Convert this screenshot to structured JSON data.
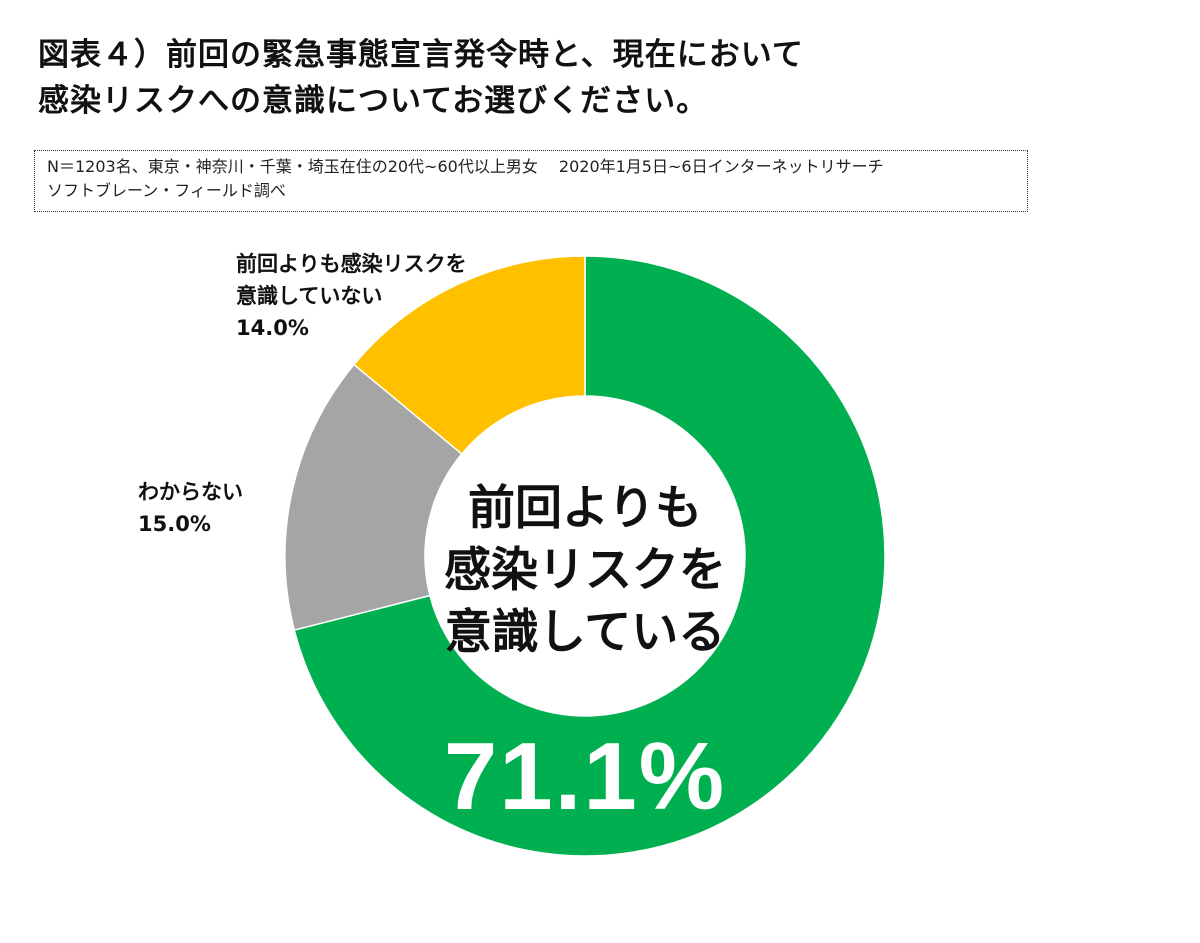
{
  "title": {
    "line1": "図表４）前回の緊急事態宣言発令時と、現在において",
    "line2": "感染リスクへの意識についてお選びください。"
  },
  "note": {
    "line1": "N＝1203名、東京・神奈川・千葉・埼玉在住の20代~60代以上男女　 2020年1月5日~6日インターネットリサーチ",
    "line2": "ソフトブレーン・フィールド調べ"
  },
  "chart_data": {
    "type": "pie",
    "variant": "donut",
    "title": "",
    "slices": [
      {
        "label_lines": [
          "前回よりも",
          "感染リスクを",
          "意識している"
        ],
        "value": 71.1,
        "value_text": "71.1%",
        "color": "#00B050"
      },
      {
        "label_lines": [
          "わからない"
        ],
        "value": 15.0,
        "value_text": "15.0%",
        "color": "#A5A5A5"
      },
      {
        "label_lines": [
          "前回よりも感染リスクを",
          "意識していない"
        ],
        "value": 14.0,
        "value_text": "14.0%",
        "color": "#FFC000"
      }
    ]
  }
}
